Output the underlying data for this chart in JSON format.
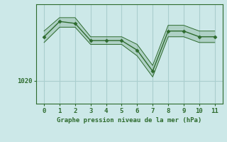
{
  "x": [
    0,
    1,
    2,
    3,
    4,
    5,
    6,
    7,
    8,
    9,
    10,
    11
  ],
  "y_main": [
    1031.5,
    1035.5,
    1035.0,
    1030.5,
    1030.5,
    1030.5,
    1028.0,
    1022.5,
    1033.0,
    1033.0,
    1031.5,
    1031.5
  ],
  "y_upper": [
    1033.0,
    1036.5,
    1036.5,
    1031.5,
    1031.5,
    1031.5,
    1029.5,
    1024.0,
    1034.5,
    1034.5,
    1033.0,
    1033.0
  ],
  "y_lower": [
    1030.0,
    1034.0,
    1034.0,
    1029.5,
    1029.5,
    1029.5,
    1026.5,
    1021.0,
    1031.5,
    1031.5,
    1030.0,
    1030.0
  ],
  "line_color": "#2d6a2d",
  "marker": "D",
  "marker_size": 2.5,
  "bg_color": "#cce8e8",
  "grid_color": "#aacece",
  "xlabel": "Graphe pression niveau de la mer (hPa)",
  "xlabel_color": "#2d6a2d",
  "tick_color": "#2d6a2d",
  "ytick_label": "1020",
  "ytick_value": 1020,
  "xlim": [
    -0.5,
    11.5
  ],
  "ylim": [
    1014,
    1040
  ],
  "xticks": [
    0,
    1,
    2,
    3,
    4,
    5,
    6,
    7,
    8,
    9,
    10,
    11
  ],
  "yticks": [
    1020
  ]
}
